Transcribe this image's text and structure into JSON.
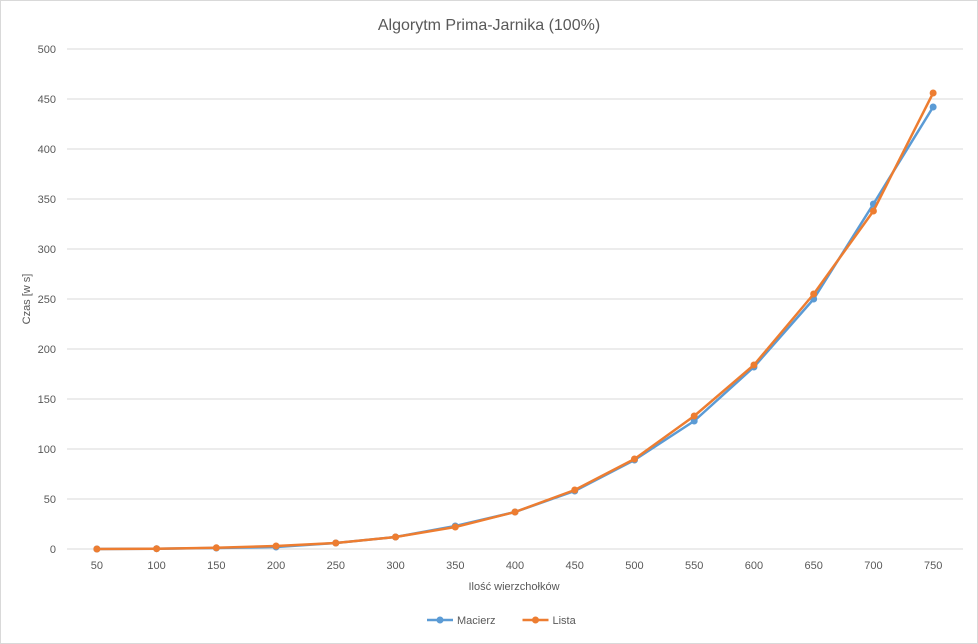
{
  "chart_data": {
    "type": "line",
    "title": "Algorytm Prima-Jarnika (100%)",
    "xlabel": "Ilość wierzchołków",
    "ylabel": "Czas [w s]",
    "categories": [
      "50",
      "100",
      "150",
      "200",
      "250",
      "300",
      "350",
      "400",
      "450",
      "500",
      "550",
      "600",
      "650",
      "700",
      "750"
    ],
    "ylim": [
      0,
      500
    ],
    "yticks": [
      0,
      50,
      100,
      150,
      200,
      250,
      300,
      350,
      400,
      450,
      500
    ],
    "grid": true,
    "legend_position": "bottom",
    "series": [
      {
        "name": "Macierz",
        "color": "#5b9bd5",
        "values": [
          0,
          0.3,
          1,
          2,
          6,
          12,
          23,
          37,
          58,
          89,
          128,
          182,
          250,
          345,
          442
        ]
      },
      {
        "name": "Lista",
        "color": "#ed7d31",
        "values": [
          0,
          0.3,
          1.2,
          3,
          6,
          12,
          22,
          37,
          59,
          90,
          133,
          184,
          255,
          338,
          456
        ]
      }
    ]
  }
}
